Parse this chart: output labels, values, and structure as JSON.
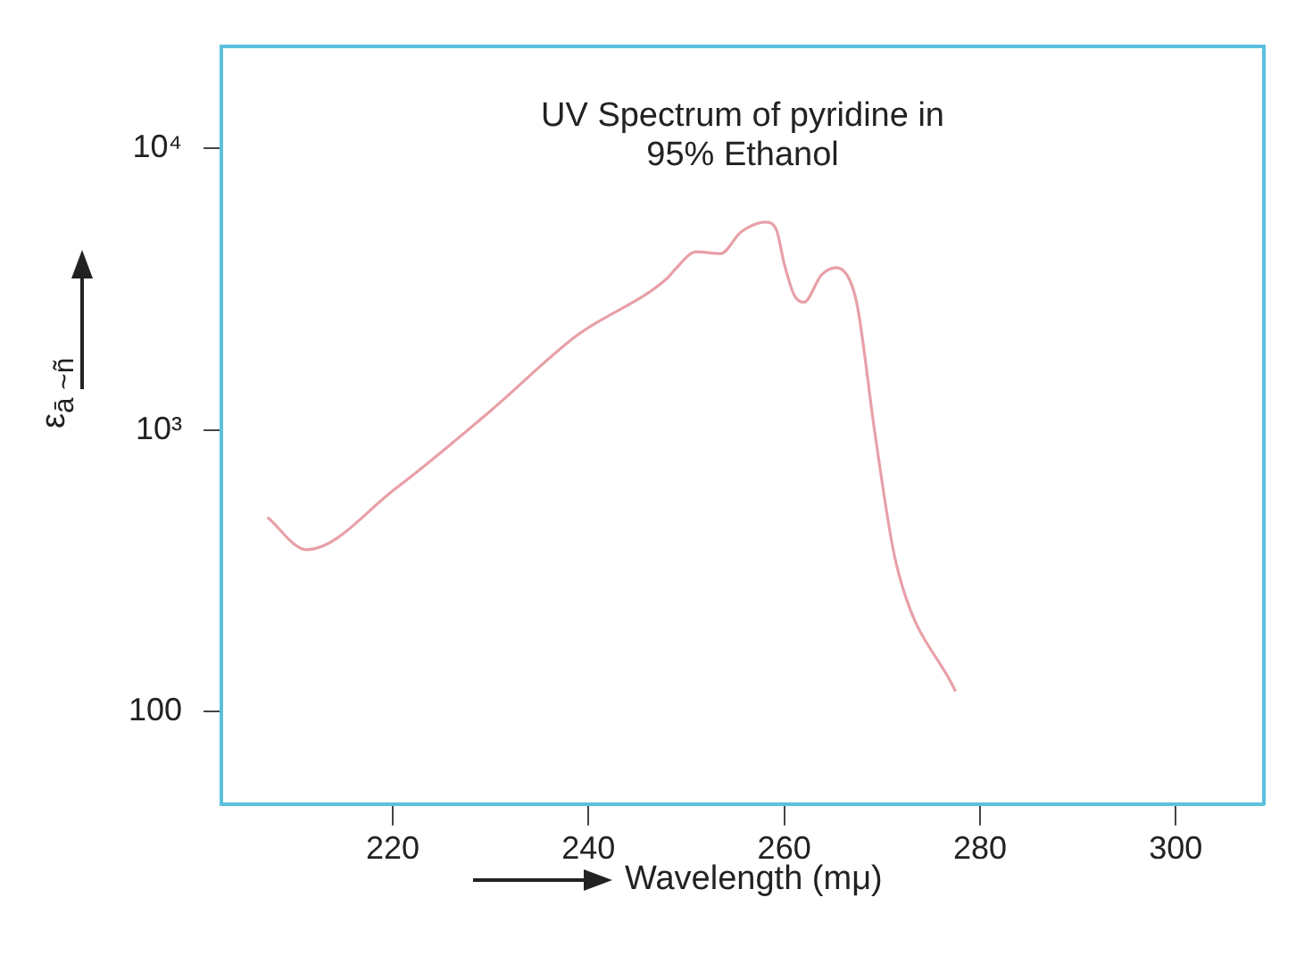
{
  "chart_data": {
    "type": "line",
    "title": "UV Spectrum of pyridine in\n95% Ethanol",
    "xlabel": "Wavelength (mμ)",
    "ylabel": "ε$_{ā ~ñ}$",
    "x": [
      207.2,
      211.2,
      220.3,
      230,
      238.7,
      248.1,
      248.8,
      251,
      253.5,
      255.6,
      258.1,
      259.2,
      260,
      261,
      262,
      263.8,
      265.3,
      266.7,
      267.5,
      269.3,
      271.4,
      277.5
    ],
    "series": [
      {
        "color": "#e8a0a8",
        "values": [
          490,
          376,
          620,
          1170,
          2150,
          3470,
          3700,
          4290,
          4230,
          5050,
          5470,
          5130,
          3890,
          3020,
          2840,
          3550,
          3770,
          3400,
          2720,
          955,
          340,
          118
        ]
      }
    ],
    "log": "y",
    "xlim": [
      202.5,
      309
    ],
    "ylim": [
      47,
      23000
    ],
    "xticks": [
      220,
      240,
      260,
      280,
      300
    ],
    "yticks": [
      {
        "value": 100,
        "label": "100"
      },
      {
        "value": 1000,
        "label": "10³"
      },
      {
        "value": 10000,
        "label": "10⁴"
      }
    ],
    "grid": false,
    "legend": false,
    "marker": "none",
    "line_style": "solid"
  }
}
